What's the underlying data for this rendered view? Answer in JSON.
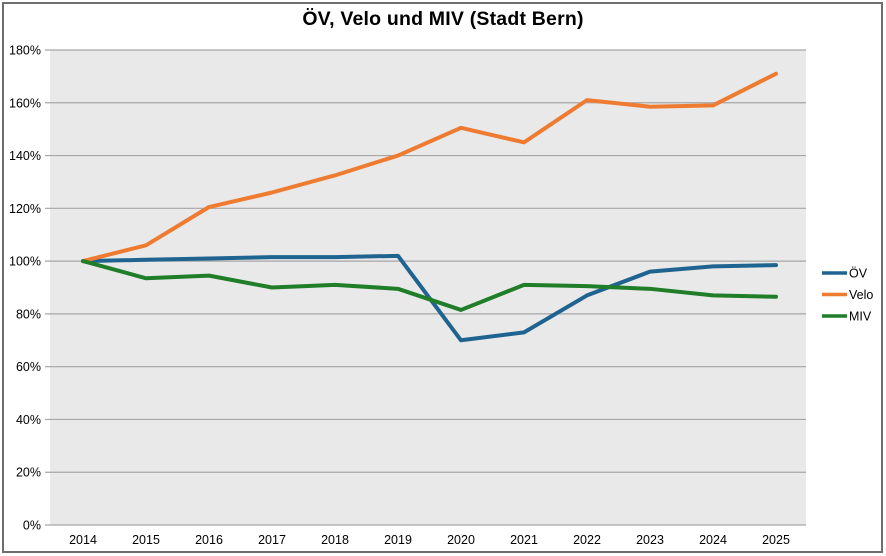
{
  "chart_data": {
    "type": "line",
    "title": "ÖV, Velo und MIV (Stadt Bern)",
    "categories": [
      "2014",
      "2015",
      "2016",
      "2017",
      "2018",
      "2019",
      "2020",
      "2021",
      "2022",
      "2023",
      "2024",
      "2025"
    ],
    "series": [
      {
        "name": "ÖV",
        "color": "#1f6490",
        "values": [
          100,
          100.5,
          101,
          101.5,
          101.5,
          102,
          70,
          73,
          87,
          96,
          98,
          98.5
        ]
      },
      {
        "name": "Velo",
        "color": "#ee7b30",
        "values": [
          100,
          106,
          120.5,
          126,
          132.5,
          140,
          150.5,
          145,
          161,
          158.5,
          159,
          171
        ]
      },
      {
        "name": "MIV",
        "color": "#1f7e27",
        "values": [
          100,
          93.5,
          94.5,
          90,
          91,
          89.5,
          81.5,
          91,
          90.5,
          89.5,
          87,
          86.5
        ]
      }
    ],
    "xlabel": "",
    "ylabel": "",
    "ylim": [
      0,
      180
    ],
    "y_tick_step": 20,
    "y_ticks": [
      "0%",
      "20%",
      "40%",
      "60%",
      "80%",
      "100%",
      "120%",
      "140%",
      "160%",
      "180%"
    ],
    "grid": "horizontal",
    "legend_position": "right",
    "plot_bg": "#e9e9e9",
    "grid_color": "#a6a6a6",
    "line_width": 4
  }
}
